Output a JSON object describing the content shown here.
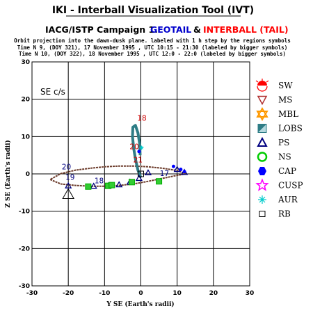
{
  "header": {
    "title": "IKI - Interball Visualization Tool (IVT)",
    "campaign": "IACG/ISTP Campaign 1.",
    "geotail": "GEOTAIL",
    "amp": "&",
    "interball": "INTERBALL (TAIL)",
    "line1": "Orbit projection into the dawn-dusk plane. labeled with 1 h step by the regions symbols",
    "line2": "Time N 9, (DOY 321), 17 November 1995 ,  UTC 10:15 - 21:30 (labeled by bigger symbols)",
    "line3": "Time N 10, (DOY 322), 18 November 1995 ,  UTC 12:0 - 22:0 (labeled by bigger symbols)"
  },
  "colors": {
    "geotail": "#0000cc",
    "interball": "#ff0000",
    "hour_label": "#cc0000",
    "orbit_geotail": "#6b3a2a",
    "orbit_interball": "#2e7d86",
    "grid": "#000000"
  },
  "chart_data": {
    "type": "scatter",
    "coordinate_system_label": "SE c/s",
    "xlabel": "Y SE (Earth's radii)",
    "ylabel": "Z SE (Earth's radii)",
    "xlim": [
      -30,
      30
    ],
    "ylim": [
      -30,
      30
    ],
    "x_ticks": [
      "-30",
      "-20",
      "-10",
      "0",
      "10",
      "20",
      "30"
    ],
    "y_ticks": [
      "30",
      "20",
      "10",
      "0",
      "-10",
      "-20",
      "-30"
    ],
    "grid": true,
    "series": [
      {
        "name": "GEOTAIL",
        "x": [
          12.5,
          10,
          6,
          2,
          -2,
          -6,
          -10,
          -14,
          -18,
          -22,
          -25,
          -22,
          -18,
          -14,
          -10,
          -6,
          -2,
          2,
          6,
          10,
          12.5
        ],
        "y": [
          0,
          0.9,
          1.5,
          1.9,
          2.1,
          2.1,
          1.9,
          1.5,
          1.0,
          0.1,
          -1.5,
          -2.7,
          -3.1,
          -3.3,
          -3.3,
          -3.1,
          -2.7,
          -2.0,
          -1.2,
          -0.4,
          0
        ]
      },
      {
        "name": "INTERBALL (TAIL)",
        "x": [
          0,
          -0.8,
          -1.5,
          -2,
          -2.3,
          -2.2,
          -1.5,
          -0.8,
          -0.3,
          -0.2
        ],
        "y": [
          -1,
          1,
          4,
          7,
          10,
          12.5,
          13,
          11,
          8,
          5
        ]
      }
    ],
    "hour_labels": [
      {
        "text": "18",
        "x": 0.3,
        "y": 14.3
      },
      {
        "text": "20",
        "x": -1.8,
        "y": 6.6
      },
      {
        "text": "21",
        "x": -0.8,
        "y": 3.1
      },
      {
        "text": "20",
        "x": -20.5,
        "y": 1.2
      },
      {
        "text": "19",
        "x": -19.5,
        "y": -1.6
      },
      {
        "text": "18",
        "x": -11.5,
        "y": -2.5
      },
      {
        "text": "17",
        "x": 6.5,
        "y": -0.6
      }
    ],
    "legend": [
      {
        "label": "SW",
        "icon": "sun-icon",
        "color": "#ff0000"
      },
      {
        "label": "MS",
        "icon": "triangle-down-icon",
        "color": "#b03030"
      },
      {
        "label": "MBL",
        "icon": "star-of-david-icon",
        "color": "#ff9900"
      },
      {
        "label": "LOBS",
        "icon": "split-square-icon",
        "color": "#2e7d86"
      },
      {
        "label": "PS",
        "icon": "triangle-up-icon",
        "color": "#000080"
      },
      {
        "label": "NS",
        "icon": "circle-icon",
        "color": "#00cc00"
      },
      {
        "label": "CAP",
        "icon": "hexagon-icon",
        "color": "#0000ff"
      },
      {
        "label": "CUSP",
        "icon": "star-icon",
        "color": "#ff00ff"
      },
      {
        "label": "AUR",
        "icon": "asterisk-icon",
        "color": "#00cccc"
      },
      {
        "label": "RB",
        "icon": "square-icon",
        "color": "#000000"
      }
    ]
  }
}
